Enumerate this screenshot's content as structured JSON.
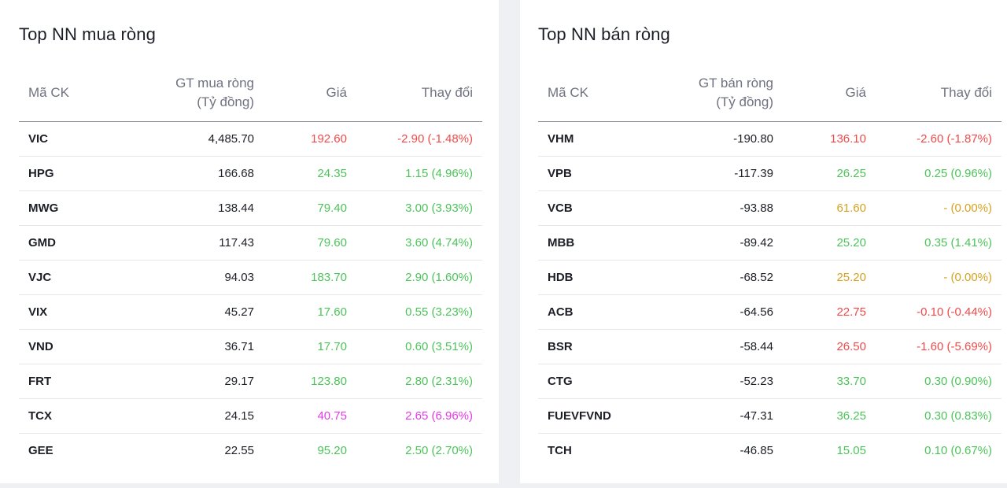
{
  "colors": {
    "down": "#f04a4a",
    "up": "#4cc45a",
    "ref": "#d6a21e",
    "ceiling": "#e53ae6"
  },
  "buy": {
    "title": "Top NN mua ròng",
    "headers": {
      "symbol": "Mã CK",
      "value_line1": "GT mua ròng",
      "value_line2": "(Tỷ đồng)",
      "price": "Giá",
      "change": "Thay đổi"
    },
    "rows": [
      {
        "symbol": "VIC",
        "value": "4,485.70",
        "price": "192.60",
        "change": "-2.90 (-1.48%)",
        "status": "down"
      },
      {
        "symbol": "HPG",
        "value": "166.68",
        "price": "24.35",
        "change": "1.15 (4.96%)",
        "status": "up"
      },
      {
        "symbol": "MWG",
        "value": "138.44",
        "price": "79.40",
        "change": "3.00 (3.93%)",
        "status": "up"
      },
      {
        "symbol": "GMD",
        "value": "117.43",
        "price": "79.60",
        "change": "3.60 (4.74%)",
        "status": "up"
      },
      {
        "symbol": "VJC",
        "value": "94.03",
        "price": "183.70",
        "change": "2.90 (1.60%)",
        "status": "up"
      },
      {
        "symbol": "VIX",
        "value": "45.27",
        "price": "17.60",
        "change": "0.55 (3.23%)",
        "status": "up"
      },
      {
        "symbol": "VND",
        "value": "36.71",
        "price": "17.70",
        "change": "0.60 (3.51%)",
        "status": "up"
      },
      {
        "symbol": "FRT",
        "value": "29.17",
        "price": "123.80",
        "change": "2.80 (2.31%)",
        "status": "up"
      },
      {
        "symbol": "TCX",
        "value": "24.15",
        "price": "40.75",
        "change": "2.65 (6.96%)",
        "status": "ceiling"
      },
      {
        "symbol": "GEE",
        "value": "22.55",
        "price": "95.20",
        "change": "2.50 (2.70%)",
        "status": "up"
      }
    ]
  },
  "sell": {
    "title": "Top NN bán ròng",
    "headers": {
      "symbol": "Mã CK",
      "value_line1": "GT bán ròng",
      "value_line2": "(Tỷ đồng)",
      "price": "Giá",
      "change": "Thay đổi"
    },
    "rows": [
      {
        "symbol": "VHM",
        "value": "-190.80",
        "price": "136.10",
        "change": "-2.60 (-1.87%)",
        "status": "down"
      },
      {
        "symbol": "VPB",
        "value": "-117.39",
        "price": "26.25",
        "change": "0.25 (0.96%)",
        "status": "up"
      },
      {
        "symbol": "VCB",
        "value": "-93.88",
        "price": "61.60",
        "change": "- (0.00%)",
        "status": "ref"
      },
      {
        "symbol": "MBB",
        "value": "-89.42",
        "price": "25.20",
        "change": "0.35 (1.41%)",
        "status": "up"
      },
      {
        "symbol": "HDB",
        "value": "-68.52",
        "price": "25.20",
        "change": "- (0.00%)",
        "status": "ref"
      },
      {
        "symbol": "ACB",
        "value": "-64.56",
        "price": "22.75",
        "change": "-0.10 (-0.44%)",
        "status": "down"
      },
      {
        "symbol": "BSR",
        "value": "-58.44",
        "price": "26.50",
        "change": "-1.60 (-5.69%)",
        "status": "down"
      },
      {
        "symbol": "CTG",
        "value": "-52.23",
        "price": "33.70",
        "change": "0.30 (0.90%)",
        "status": "up"
      },
      {
        "symbol": "FUEVFVND",
        "value": "-47.31",
        "price": "36.25",
        "change": "0.30 (0.83%)",
        "status": "up"
      },
      {
        "symbol": "TCH",
        "value": "-46.85",
        "price": "15.05",
        "change": "0.10 (0.67%)",
        "status": "up"
      }
    ]
  }
}
